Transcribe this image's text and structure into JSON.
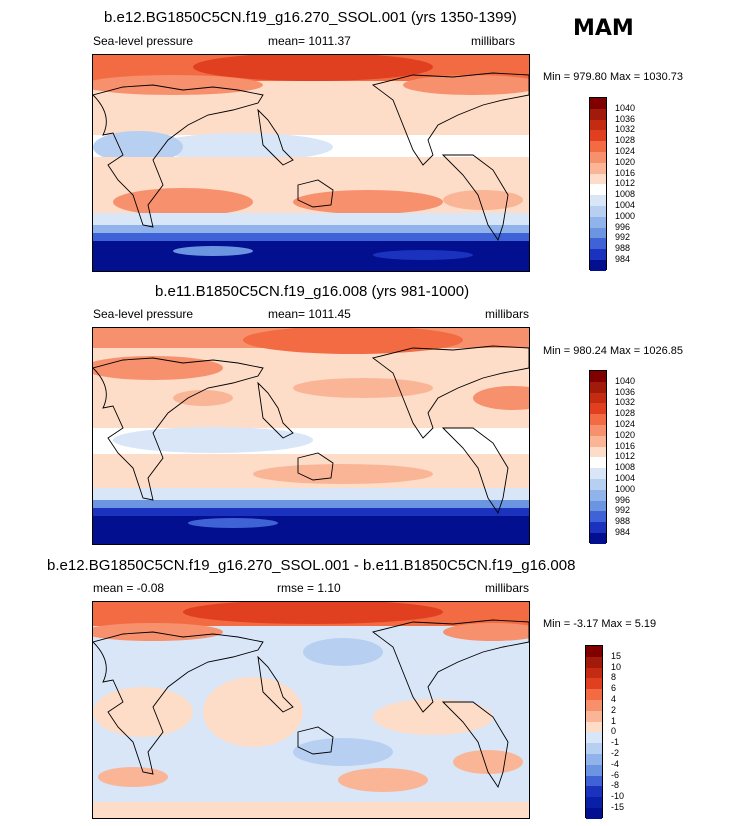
{
  "season": "MAM",
  "panels": [
    {
      "title": "b.e12.BG1850C5CN.f19_g16.270_SSOL.001 (yrs 1350-1399)",
      "left_label": "Sea-level pressure",
      "center_label": "mean= 1011.37",
      "right_label": "millibars",
      "minmax": "Min = 979.80 Max = 1030.73",
      "colorbar": {
        "labels": [
          "1040",
          "1036",
          "1032",
          "1028",
          "1024",
          "1020",
          "1016",
          "1012",
          "1008",
          "1004",
          "1000",
          "996",
          "992",
          "988",
          "984"
        ],
        "colors": [
          "#800000",
          "#a11a0a",
          "#c32b12",
          "#e14020",
          "#f26b43",
          "#f7906c",
          "#fab597",
          "#fddcc8",
          "#ffffff",
          "#d8e6f8",
          "#b7cff1",
          "#8fb3ea",
          "#6c95e1",
          "#3f63d6",
          "#1b32bf",
          "#02108f"
        ]
      }
    },
    {
      "title": "b.e11.B1850C5CN.f19_g16.008 (yrs 981-1000)",
      "left_label": "Sea-level pressure",
      "center_label": "mean= 1011.45",
      "right_label": "millibars",
      "minmax": "Min = 980.24 Max = 1026.85",
      "colorbar": {
        "labels": [
          "1040",
          "1036",
          "1032",
          "1028",
          "1024",
          "1020",
          "1016",
          "1012",
          "1008",
          "1004",
          "1000",
          "996",
          "992",
          "988",
          "984"
        ],
        "colors": [
          "#800000",
          "#a11a0a",
          "#c32b12",
          "#e14020",
          "#f26b43",
          "#f7906c",
          "#fab597",
          "#fddcc8",
          "#ffffff",
          "#d8e6f8",
          "#b7cff1",
          "#8fb3ea",
          "#6c95e1",
          "#3f63d6",
          "#1b32bf",
          "#02108f"
        ]
      }
    },
    {
      "title": "b.e12.BG1850C5CN.f19_g16.270_SSOL.001 - b.e11.B1850C5CN.f19_g16.008",
      "left_label": "mean =  -0.08",
      "center_label": "rmse =   1.10",
      "right_label": "millibars",
      "minmax": "Min =  -3.17 Max =   5.19",
      "colorbar": {
        "labels": [
          "15",
          "10",
          "8",
          "6",
          "4",
          "2",
          "1",
          "0",
          "-1",
          "-2",
          "-4",
          "-6",
          "-8",
          "-10",
          "-15"
        ],
        "colors": [
          "#800000",
          "#a11a0a",
          "#c32b12",
          "#e14020",
          "#f26b43",
          "#f7906c",
          "#fab597",
          "#fddcc8",
          "#d8e6f8",
          "#b7cff1",
          "#8fb3ea",
          "#6c95e1",
          "#3f63d6",
          "#1b32bf",
          "#0a1fa8",
          "#02108f"
        ]
      }
    }
  ]
}
